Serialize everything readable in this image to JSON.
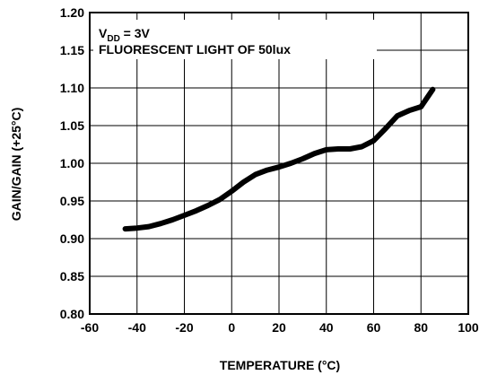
{
  "chart_data": {
    "type": "line",
    "xlabel": "TEMPERATURE (°C)",
    "ylabel": "GAIN/GAIN (+25°C)",
    "xlim": [
      -60,
      100
    ],
    "ylim": [
      0.8,
      1.2
    ],
    "x_ticks": [
      "-60",
      "-40",
      "-20",
      "0",
      "20",
      "40",
      "60",
      "80",
      "100"
    ],
    "y_ticks": [
      "0.80",
      "0.85",
      "0.90",
      "0.95",
      "1.00",
      "1.05",
      "1.10",
      "1.15",
      "1.20"
    ],
    "grid": true,
    "legend": "none",
    "annotations": {
      "vdd_prefix": "V",
      "vdd_sub": "DD",
      "vdd_value": " = 3V",
      "light": "FLUORESCENT LIGHT OF 50lux"
    },
    "series": [
      {
        "color": "#000000",
        "x": [
          -45,
          -40,
          -35,
          -30,
          -25,
          -20,
          -15,
          -10,
          -5,
          0,
          5,
          10,
          15,
          20,
          25,
          30,
          35,
          40,
          45,
          50,
          55,
          60,
          65,
          70,
          75,
          80,
          85
        ],
        "y": [
          0.913,
          0.914,
          0.916,
          0.92,
          0.925,
          0.931,
          0.937,
          0.944,
          0.952,
          0.963,
          0.975,
          0.985,
          0.991,
          0.995,
          1.0,
          1.006,
          1.013,
          1.018,
          1.019,
          1.019,
          1.022,
          1.03,
          1.046,
          1.063,
          1.07,
          1.075,
          1.098
        ]
      }
    ]
  }
}
